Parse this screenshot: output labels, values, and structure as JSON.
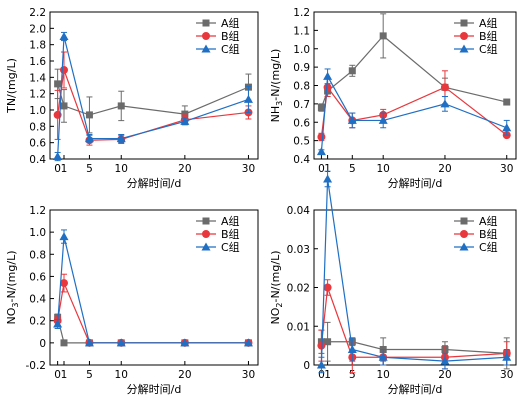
{
  "colors": {
    "A": "#6b6b6b",
    "B": "#e8383d",
    "C": "#1f6fc4"
  },
  "chart_data": [
    {
      "type": "line",
      "panel": "top-left",
      "ylabel": "TN/(mg/L)",
      "xlabel": "分解时间/d",
      "x": [
        0,
        1,
        5,
        10,
        20,
        30
      ],
      "x_ticks": [
        "0",
        "1",
        "5",
        "10",
        "20",
        "30"
      ],
      "ylim": [
        0.4,
        2.2
      ],
      "y_ticks": [
        "0.4",
        "0.6",
        "0.8",
        "1.0",
        "1.2",
        "1.4",
        "1.6",
        "1.8",
        "2.0",
        "2.2"
      ],
      "legend_position": "top-right",
      "series": [
        {
          "name": "A组",
          "marker": "square",
          "values": [
            1.32,
            1.05,
            0.94,
            1.05,
            0.95,
            1.28
          ],
          "errors": [
            0.18,
            0.2,
            0.22,
            0.18,
            0.1,
            0.16
          ]
        },
        {
          "name": "B组",
          "marker": "circle",
          "values": [
            0.94,
            1.49,
            0.63,
            0.64,
            0.88,
            0.97
          ],
          "errors": [
            0.3,
            0.22,
            0.06,
            0.05,
            0.06,
            0.08
          ]
        },
        {
          "name": "C组",
          "marker": "triangle",
          "values": [
            0.43,
            1.9,
            0.65,
            0.65,
            0.86,
            1.13
          ],
          "errors": [
            0.05,
            0.05,
            0.05,
            0.05,
            0.04,
            0.16
          ]
        }
      ]
    },
    {
      "type": "line",
      "panel": "top-right",
      "ylabel": "NH3-N/(mg/L)",
      "ylabel_main": "NH",
      "ylabel_sub": "3",
      "ylabel_rest": "-N/(mg/L)",
      "xlabel": "分解时间/d",
      "x": [
        0,
        1,
        5,
        10,
        20,
        30
      ],
      "x_ticks": [
        "0",
        "1",
        "5",
        "10",
        "20",
        "30"
      ],
      "ylim": [
        0.4,
        1.2
      ],
      "y_ticks": [
        "0.4",
        "0.5",
        "0.6",
        "0.7",
        "0.8",
        "0.9",
        "1.0",
        "1.1",
        "1.2"
      ],
      "legend_position": "top-right",
      "series": [
        {
          "name": "A组",
          "marker": "square",
          "values": [
            0.68,
            0.77,
            0.88,
            1.07,
            0.79,
            0.71
          ],
          "errors": [
            0.02,
            0.03,
            0.03,
            0.12,
            0.05,
            0.01
          ]
        },
        {
          "name": "B组",
          "marker": "circle",
          "values": [
            0.52,
            0.79,
            0.61,
            0.64,
            0.79,
            0.53
          ],
          "errors": [
            0.02,
            0.05,
            0.04,
            0.03,
            0.09,
            0.01
          ]
        },
        {
          "name": "C组",
          "marker": "triangle",
          "values": [
            0.44,
            0.85,
            0.61,
            0.61,
            0.7,
            0.57
          ],
          "errors": [
            0.01,
            0.04,
            0.04,
            0.04,
            0.04,
            0.04
          ]
        }
      ]
    },
    {
      "type": "line",
      "panel": "bottom-left",
      "ylabel": "NO3-N/(mg/L)",
      "ylabel_main": "NO",
      "ylabel_sub": "3",
      "ylabel_rest": "-N/(mg/L)",
      "xlabel": "分解时间/d",
      "x": [
        0,
        1,
        5,
        10,
        20,
        30
      ],
      "x_ticks": [
        "0",
        "1",
        "5",
        "10",
        "20",
        "30"
      ],
      "ylim": [
        -0.2,
        1.2
      ],
      "y_ticks": [
        "-0.2",
        "0",
        "0.2",
        "0.4",
        "0.6",
        "0.8",
        "1.0",
        "1.2"
      ],
      "legend_position": "top-right",
      "series": [
        {
          "name": "A组",
          "marker": "square",
          "values": [
            0.23,
            0.0,
            0.0,
            0.0,
            0.0,
            0.0
          ],
          "errors": [
            0.03,
            0.0,
            0.0,
            0.0,
            0.0,
            0.0
          ]
        },
        {
          "name": "B组",
          "marker": "circle",
          "values": [
            0.2,
            0.54,
            0.0,
            0.0,
            0.0,
            0.0
          ],
          "errors": [
            0.04,
            0.08,
            0.0,
            0.0,
            0.0,
            0.0
          ]
        },
        {
          "name": "C组",
          "marker": "triangle",
          "values": [
            0.17,
            0.96,
            0.0,
            0.0,
            0.0,
            0.0
          ],
          "errors": [
            0.04,
            0.06,
            0.0,
            0.0,
            0.0,
            0.0
          ]
        }
      ]
    },
    {
      "type": "line",
      "panel": "bottom-right",
      "ylabel": "NO2-N/(mg/L)",
      "ylabel_main": "NO",
      "ylabel_sub": "2",
      "ylabel_rest": "-N/(mg/L)",
      "xlabel": "分解时间/d",
      "x": [
        0,
        1,
        5,
        10,
        20,
        30
      ],
      "x_ticks": [
        "0",
        "1",
        "5",
        "10",
        "20",
        "30"
      ],
      "ylim": [
        0,
        0.04
      ],
      "y_ticks": [
        "0",
        "0.01",
        "0.02",
        "0.03",
        "0.04"
      ],
      "legend_position": "top-right",
      "series": [
        {
          "name": "A组",
          "marker": "square",
          "values": [
            0.006,
            0.006,
            0.006,
            0.004,
            0.004,
            0.003
          ],
          "errors": [
            0.003,
            0.005,
            0.001,
            0.003,
            0.002,
            0.004
          ]
        },
        {
          "name": "B组",
          "marker": "circle",
          "values": [
            0.005,
            0.02,
            0.002,
            0.002,
            0.002,
            0.003
          ],
          "errors": [
            0.004,
            0.002,
            0.004,
            0.002,
            0.003,
            0.003
          ]
        },
        {
          "name": "C组",
          "marker": "triangle",
          "values": [
            0.0,
            0.048,
            0.004,
            0.002,
            0.001,
            0.002
          ],
          "errors": [
            0.002,
            0.002,
            0.003,
            0.002,
            0.002,
            0.002
          ]
        }
      ]
    }
  ]
}
